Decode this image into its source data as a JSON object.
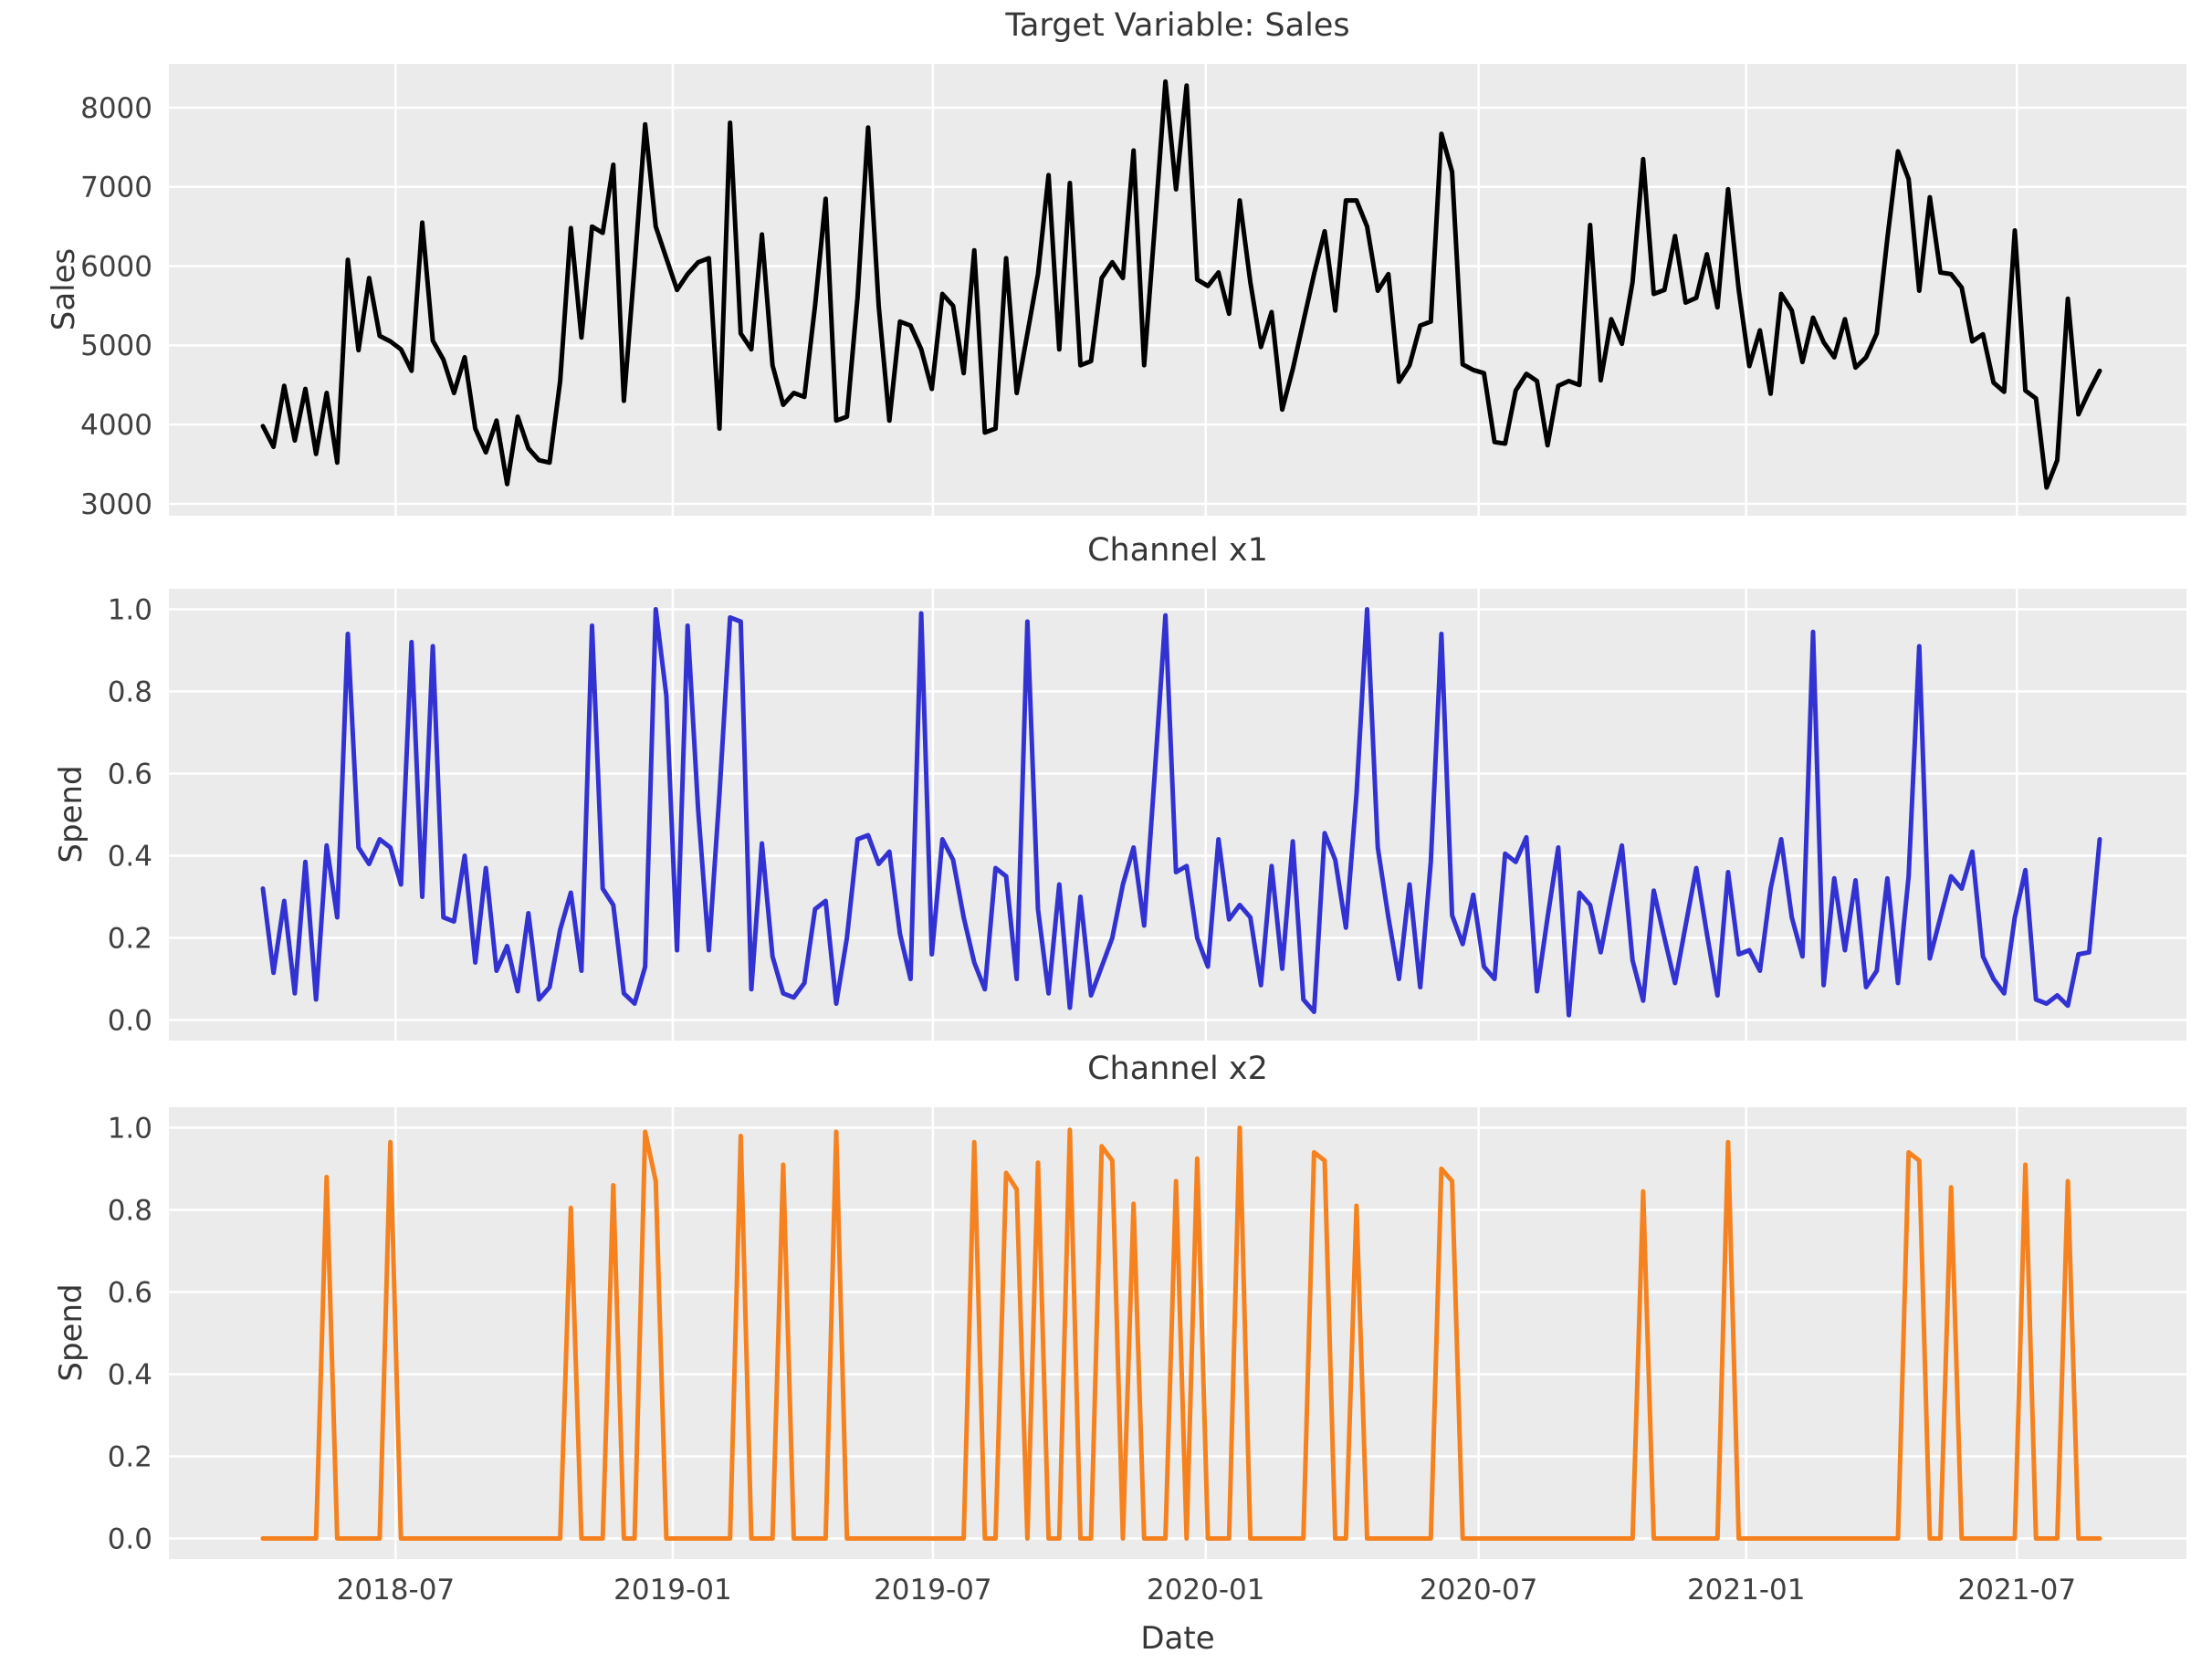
{
  "figure": {
    "background": "#ffffff",
    "plot_background": "#ebebeb",
    "grid_color": "#ffffff",
    "text_color": "#404040"
  },
  "x_axis": {
    "label": "Date",
    "frequency": "weekly",
    "n_points": 174,
    "start_date": "2018-04-08",
    "end_date": "2021-08-01",
    "ticks": [
      {
        "label": "2018-07",
        "week": 12.5
      },
      {
        "label": "2019-01",
        "week": 38.6
      },
      {
        "label": "2019-07",
        "week": 63.1
      },
      {
        "label": "2020-01",
        "week": 88.8
      },
      {
        "label": "2020-07",
        "week": 114.5
      },
      {
        "label": "2021-01",
        "week": 139.7
      },
      {
        "label": "2021-07",
        "week": 165.2
      }
    ]
  },
  "chart_data": [
    {
      "type": "line",
      "title": "Target Variable: Sales",
      "ylabel": "Sales",
      "line_color": "#000000",
      "ylim": [
        2850,
        8553
      ],
      "grid": true,
      "legend": "none",
      "y_ticks": [
        {
          "label": "8000",
          "value": 8000
        },
        {
          "label": "7000",
          "value": 7000
        },
        {
          "label": "6000",
          "value": 6000
        },
        {
          "label": "5000",
          "value": 5000
        },
        {
          "label": "4000",
          "value": 4000
        },
        {
          "label": "3000",
          "value": 3000
        }
      ],
      "values": [
        3980,
        3720,
        4490,
        3800,
        4450,
        3630,
        4400,
        3520,
        6080,
        4940,
        5850,
        5120,
        5050,
        4950,
        4680,
        6550,
        5060,
        4820,
        4400,
        4850,
        3950,
        3650,
        4050,
        3250,
        4100,
        3700,
        3550,
        3520,
        4550,
        6480,
        5100,
        6500,
        6420,
        7280,
        4300,
        6000,
        7790,
        6500,
        6100,
        5700,
        5900,
        6050,
        6100,
        3950,
        7810,
        5150,
        4950,
        6400,
        4750,
        4250,
        4400,
        4350,
        5500,
        6850,
        4050,
        4100,
        5600,
        7750,
        5500,
        4050,
        5300,
        5250,
        4950,
        4450,
        5650,
        5500,
        4650,
        6200,
        3900,
        3950,
        6100,
        4400,
        5150,
        5900,
        7150,
        4950,
        7050,
        4750,
        4800,
        5850,
        6050,
        5850,
        7460,
        4750,
        6500,
        8330,
        6970,
        8280,
        5830,
        5750,
        5920,
        5400,
        6830,
        5800,
        4980,
        5420,
        4190,
        4700,
        5300,
        5900,
        6440,
        5440,
        6830,
        6830,
        6500,
        5690,
        5900,
        4540,
        4750,
        5250,
        5300,
        7670,
        7190,
        4760,
        4690,
        4650,
        3780,
        3760,
        4430,
        4640,
        4550,
        3740,
        4490,
        4550,
        4500,
        6520,
        4560,
        5330,
        5020,
        5800,
        7350,
        5650,
        5700,
        6380,
        5540,
        5600,
        6150,
        5480,
        6970,
        5700,
        4740,
        5190,
        4390,
        5650,
        5440,
        4790,
        5350,
        5040,
        4850,
        5330,
        4720,
        4850,
        5150,
        6350,
        7450,
        7100,
        5690,
        6870,
        5920,
        5900,
        5730,
        5050,
        5140,
        4530,
        4415,
        6450,
        4430,
        4330,
        3205,
        3550,
        5590,
        4130,
        4420,
        4680
      ]
    },
    {
      "type": "line",
      "title": "Channel x1",
      "ylabel": "Spend",
      "line_color": "#3232d2",
      "ylim": [
        -0.05,
        1.05
      ],
      "grid": true,
      "legend": "none",
      "y_ticks": [
        {
          "label": "1.0",
          "value": 1.0
        },
        {
          "label": "0.8",
          "value": 0.8
        },
        {
          "label": "0.6",
          "value": 0.6
        },
        {
          "label": "0.4",
          "value": 0.4
        },
        {
          "label": "0.2",
          "value": 0.2
        },
        {
          "label": "0.0",
          "value": 0.0
        }
      ],
      "values": [
        0.32,
        0.115,
        0.29,
        0.065,
        0.385,
        0.05,
        0.425,
        0.25,
        0.94,
        0.42,
        0.38,
        0.44,
        0.42,
        0.33,
        0.92,
        0.3,
        0.91,
        0.25,
        0.24,
        0.4,
        0.14,
        0.37,
        0.12,
        0.18,
        0.07,
        0.26,
        0.05,
        0.08,
        0.22,
        0.31,
        0.12,
        0.96,
        0.32,
        0.28,
        0.065,
        0.04,
        0.13,
        1.0,
        0.79,
        0.17,
        0.96,
        0.51,
        0.17,
        0.55,
        0.98,
        0.97,
        0.075,
        0.43,
        0.155,
        0.065,
        0.055,
        0.09,
        0.27,
        0.29,
        0.04,
        0.2,
        0.44,
        0.45,
        0.38,
        0.41,
        0.21,
        0.1,
        0.99,
        0.16,
        0.44,
        0.39,
        0.25,
        0.14,
        0.075,
        0.37,
        0.35,
        0.1,
        0.97,
        0.27,
        0.065,
        0.33,
        0.03,
        0.3,
        0.06,
        0.13,
        0.2,
        0.33,
        0.42,
        0.23,
        0.6,
        0.985,
        0.36,
        0.375,
        0.2,
        0.13,
        0.44,
        0.245,
        0.28,
        0.25,
        0.085,
        0.375,
        0.125,
        0.435,
        0.05,
        0.02,
        0.455,
        0.39,
        0.225,
        0.55,
        1.0,
        0.42,
        0.25,
        0.1,
        0.33,
        0.08,
        0.385,
        0.94,
        0.255,
        0.185,
        0.305,
        0.13,
        0.1,
        0.405,
        0.385,
        0.445,
        0.07,
        0.25,
        0.42,
        0.012,
        0.31,
        0.28,
        0.165,
        0.3,
        0.425,
        0.145,
        0.047,
        0.315,
        0.2,
        0.09,
        0.23,
        0.37,
        0.21,
        0.06,
        0.36,
        0.16,
        0.17,
        0.12,
        0.32,
        0.44,
        0.25,
        0.155,
        0.945,
        0.085,
        0.345,
        0.17,
        0.34,
        0.08,
        0.12,
        0.345,
        0.09,
        0.35,
        0.91,
        0.15,
        0.25,
        0.35,
        0.32,
        0.41,
        0.155,
        0.1,
        0.065,
        0.25,
        0.365,
        0.05,
        0.04,
        0.06,
        0.035,
        0.16,
        0.165,
        0.44
      ]
    },
    {
      "type": "line",
      "title": "Channel x2",
      "ylabel": "Spend",
      "line_color": "#f5821f",
      "ylim": [
        -0.05,
        1.05
      ],
      "grid": true,
      "legend": "none",
      "y_ticks": [
        {
          "label": "1.0",
          "value": 1.0
        },
        {
          "label": "0.8",
          "value": 0.8
        },
        {
          "label": "0.6",
          "value": 0.6
        },
        {
          "label": "0.4",
          "value": 0.4
        },
        {
          "label": "0.2",
          "value": 0.2
        },
        {
          "label": "0.0",
          "value": 0.0
        }
      ],
      "values": [
        0,
        0,
        0,
        0,
        0,
        0,
        0.88,
        0,
        0,
        0,
        0,
        0,
        0.965,
        0,
        0,
        0,
        0,
        0,
        0,
        0,
        0,
        0,
        0,
        0,
        0,
        0,
        0,
        0,
        0,
        0.805,
        0,
        0,
        0,
        0.86,
        0,
        0,
        0.99,
        0.87,
        0,
        0,
        0,
        0,
        0,
        0,
        0,
        0.98,
        0,
        0,
        0,
        0.91,
        0,
        0,
        0,
        0,
        0.99,
        0,
        0,
        0,
        0,
        0,
        0,
        0,
        0,
        0,
        0,
        0,
        0,
        0.965,
        0,
        0,
        0.89,
        0.85,
        0,
        0.915,
        0,
        0,
        0.995,
        0,
        0,
        0.955,
        0.92,
        0,
        0.815,
        0,
        0,
        0,
        0.87,
        0,
        0.925,
        0,
        0,
        0,
        1.0,
        0,
        0,
        0,
        0,
        0,
        0,
        0.94,
        0.92,
        0,
        0,
        0.81,
        0,
        0,
        0,
        0,
        0,
        0,
        0,
        0.9,
        0.87,
        0,
        0,
        0,
        0,
        0,
        0,
        0,
        0,
        0,
        0,
        0,
        0,
        0,
        0,
        0,
        0,
        0,
        0.845,
        0,
        0,
        0,
        0,
        0,
        0,
        0,
        0.965,
        0,
        0,
        0,
        0,
        0,
        0,
        0,
        0,
        0,
        0,
        0,
        0,
        0,
        0,
        0,
        0,
        0.94,
        0.92,
        0,
        0,
        0.855,
        0,
        0,
        0,
        0,
        0,
        0,
        0.91,
        0,
        0,
        0,
        0.87,
        0,
        0,
        0
      ]
    }
  ]
}
